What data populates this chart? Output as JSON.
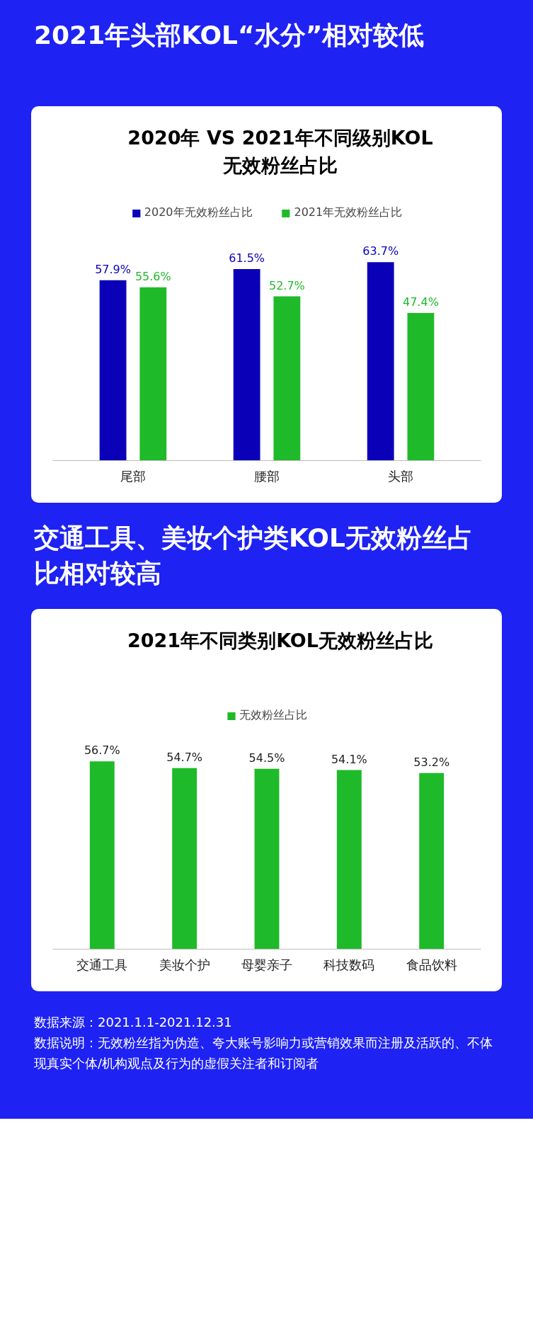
{
  "chart_data": [
    {
      "type": "bar",
      "title": "2021年头部KOL“水分”相对较低",
      "subtitle": "2020年 VS 2021年不同级别KOL无效粉丝占比",
      "categories": [
        "尾部",
        "腰部",
        "头部"
      ],
      "series": [
        {
          "name": "2020年无效粉丝占比",
          "color": "#0a00b8",
          "values": [
            57.9,
            61.5,
            63.7
          ],
          "value_labels": [
            "57.9%",
            "61.5%",
            "63.7%"
          ]
        },
        {
          "name": "2021年无效粉丝占比",
          "color": "#1fba29",
          "values": [
            55.6,
            52.7,
            47.4
          ],
          "value_labels": [
            "55.6%",
            "52.7%",
            "47.4%"
          ]
        }
      ],
      "tick_labels": "x",
      "grid": false,
      "legend": "top"
    },
    {
      "type": "bar",
      "title": "交通工具、美妆个护类KOL无效粉丝占比相对较高",
      "subtitle": "2021年不同类别KOL无效粉丝占比",
      "categories": [
        "交通工具",
        "美妆个护",
        "母婴亲子",
        "科技数码",
        "食品饮料"
      ],
      "series": [
        {
          "name": "无效粉丝占比",
          "color": "#1fba29",
          "values": [
            56.7,
            54.7,
            54.5,
            54.1,
            53.2
          ],
          "value_labels": [
            "56.7%",
            "54.7%",
            "54.5%",
            "54.1%",
            "53.2%"
          ]
        }
      ],
      "tick_labels": "x",
      "grid": false,
      "legend": "top",
      "annotations": [
        "数据来源：2021.1.1-2021.12.31",
        "数据说明：无效粉丝指为伪造、夸大账号影响力或营销效果而注册及活跃的、不体现真实个体/机构观点及行为的虚假关注者和订阅者"
      ]
    }
  ]
}
